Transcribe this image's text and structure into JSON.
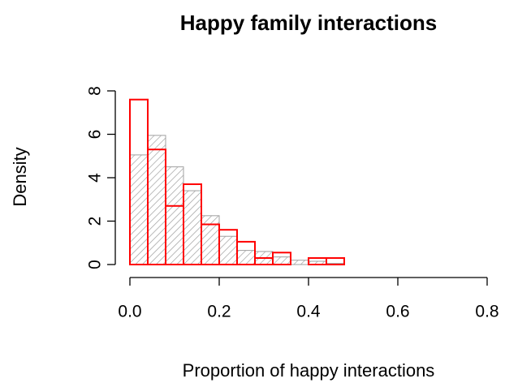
{
  "chart_data": {
    "type": "histogram",
    "title": "Happy family interactions",
    "xlabel": "Proportion of happy interactions",
    "ylabel": "Density",
    "bins": [
      0,
      0.04,
      0.08,
      0.12,
      0.16,
      0.2,
      0.24,
      0.28,
      0.32,
      0.36,
      0.4,
      0.44,
      0.48,
      0.52,
      0.56,
      0.6,
      0.64,
      0.68,
      0.72,
      0.76,
      0.8
    ],
    "series": [
      {
        "color": "#a0a0a0",
        "hatch": true,
        "values": [
          5.05,
          5.95,
          4.5,
          3.4,
          2.25,
          1.3,
          0.65,
          0.6,
          0.35,
          0.2,
          0.15,
          0.05,
          0,
          0,
          0,
          0,
          0,
          0,
          0,
          0
        ]
      },
      {
        "color": "#ff0000",
        "hatch": false,
        "values": [
          7.6,
          5.3,
          2.7,
          3.7,
          1.85,
          1.6,
          1.05,
          0.3,
          0.55,
          0,
          0.3,
          0.3,
          0,
          0,
          0,
          0,
          0,
          0,
          0,
          0
        ]
      }
    ],
    "xlim": [
      0,
      0.8
    ],
    "xticks": [
      {
        "value": 0,
        "label": "0.0"
      },
      0.2,
      0.4,
      0.6,
      0.8
    ],
    "ylim": [
      0,
      8
    ],
    "yticks": [
      0,
      2,
      4,
      6,
      8
    ]
  }
}
